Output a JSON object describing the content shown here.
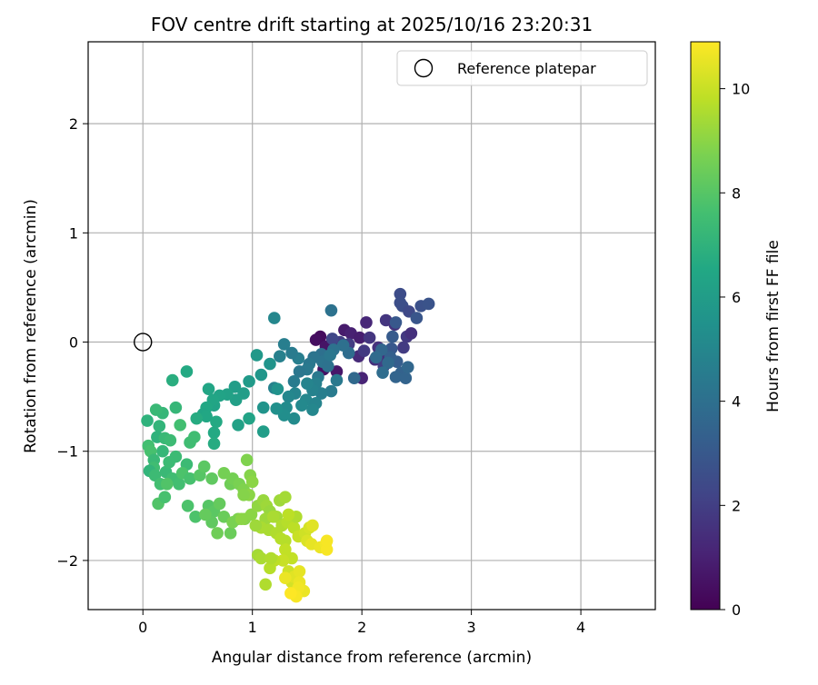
{
  "chart_data": {
    "type": "scatter",
    "title": "FOV centre drift starting at 2025/10/16 23:20:31",
    "xlabel": "Angular distance from reference (arcmin)",
    "ylabel": "Rotation from reference (arcmin)",
    "xlim": [
      -0.5,
      4.68
    ],
    "ylim": [
      -2.45,
      2.75
    ],
    "xticks": [
      "0",
      "1",
      "2",
      "3",
      "4"
    ],
    "yticks": [
      "−2",
      "−1",
      "0",
      "1",
      "2"
    ],
    "grid": true,
    "legend": {
      "position": "top-right",
      "entries": [
        {
          "label": "Reference platepar",
          "marker": "open-circle",
          "x": 0,
          "y": 0
        }
      ]
    },
    "colorbar": {
      "label": "Hours from first FF file",
      "range": [
        0,
        10.9
      ],
      "ticks": [
        "0",
        "2",
        "4",
        "6",
        "8",
        "10"
      ],
      "colormap": "viridis"
    },
    "points": [
      [
        1.62,
        0.05,
        0.3
      ],
      [
        1.58,
        0.02,
        0.4
      ],
      [
        1.67,
        -0.04,
        0.6
      ],
      [
        1.65,
        -0.25,
        0.5
      ],
      [
        1.77,
        -0.27,
        0.7
      ],
      [
        1.84,
        0.11,
        0.8
      ],
      [
        1.9,
        0.08,
        1.0
      ],
      [
        1.98,
        0.04,
        0.9
      ],
      [
        2.04,
        0.18,
        1.2
      ],
      [
        1.97,
        -0.13,
        1.3
      ],
      [
        2.0,
        -0.33,
        1.1
      ],
      [
        2.12,
        -0.16,
        1.5
      ],
      [
        2.19,
        -0.12,
        1.4
      ],
      [
        2.22,
        0.2,
        1.7
      ],
      [
        2.3,
        0.16,
        1.6
      ],
      [
        2.41,
        0.05,
        1.8
      ],
      [
        2.45,
        0.08,
        1.5
      ],
      [
        2.38,
        -0.05,
        1.9
      ],
      [
        2.15,
        -0.05,
        1.6
      ],
      [
        2.2,
        -0.22,
        2.0
      ],
      [
        2.07,
        0.04,
        1.7
      ],
      [
        2.02,
        -0.08,
        1.8
      ],
      [
        1.88,
        -0.02,
        1.9
      ],
      [
        1.8,
        0.0,
        2.0
      ],
      [
        1.73,
        0.03,
        2.3
      ],
      [
        2.35,
        0.44,
        2.5
      ],
      [
        2.37,
        0.33,
        2.6
      ],
      [
        2.35,
        0.36,
        2.6
      ],
      [
        2.43,
        0.28,
        2.4
      ],
      [
        2.54,
        0.33,
        2.7
      ],
      [
        2.61,
        0.35,
        2.8
      ],
      [
        2.5,
        0.22,
        2.9
      ],
      [
        2.31,
        0.18,
        3.0
      ],
      [
        2.28,
        0.05,
        3.1
      ],
      [
        2.27,
        -0.06,
        3.0
      ],
      [
        2.32,
        -0.18,
        3.2
      ],
      [
        2.26,
        -0.14,
        3.3
      ],
      [
        2.36,
        -0.28,
        3.4
      ],
      [
        2.31,
        -0.32,
        3.5
      ],
      [
        2.4,
        -0.33,
        3.5
      ],
      [
        2.42,
        -0.23,
        3.6
      ],
      [
        2.24,
        -0.19,
        3.7
      ],
      [
        2.18,
        -0.07,
        3.6
      ],
      [
        2.13,
        -0.14,
        3.8
      ],
      [
        2.19,
        -0.28,
        3.9
      ],
      [
        1.93,
        -0.33,
        3.7
      ],
      [
        1.88,
        -0.1,
        3.9
      ],
      [
        1.83,
        -0.03,
        4.0
      ],
      [
        1.74,
        -0.07,
        4.1
      ],
      [
        1.63,
        -0.11,
        4.0
      ],
      [
        1.56,
        -0.14,
        4.2
      ],
      [
        1.52,
        -0.2,
        4.3
      ],
      [
        1.5,
        -0.25,
        4.4
      ],
      [
        1.43,
        -0.27,
        4.3
      ],
      [
        1.38,
        -0.36,
        4.5
      ],
      [
        1.42,
        -0.15,
        4.6
      ],
      [
        1.36,
        -0.1,
        4.5
      ],
      [
        1.29,
        -0.02,
        4.6
      ],
      [
        1.25,
        -0.13,
        4.7
      ],
      [
        1.2,
        -0.42,
        4.8
      ],
      [
        1.64,
        -0.18,
        4.2
      ],
      [
        1.69,
        -0.22,
        4.1
      ],
      [
        1.71,
        -0.12,
        4.3
      ],
      [
        1.77,
        -0.35,
        4.4
      ],
      [
        1.72,
        -0.45,
        4.5
      ],
      [
        1.63,
        -0.47,
        4.6
      ],
      [
        1.6,
        -0.32,
        4.4
      ],
      [
        1.58,
        -0.38,
        4.7
      ],
      [
        1.55,
        -0.44,
        4.8
      ],
      [
        1.5,
        -0.38,
        4.9
      ],
      [
        1.49,
        -0.53,
        5.0
      ],
      [
        1.45,
        -0.58,
        5.1
      ],
      [
        1.39,
        -0.47,
        4.9
      ],
      [
        1.33,
        -0.5,
        5.0
      ],
      [
        1.31,
        -0.6,
        5.2
      ],
      [
        1.38,
        -0.7,
        5.2
      ],
      [
        1.29,
        -0.67,
        5.3
      ],
      [
        1.22,
        -0.61,
        5.4
      ],
      [
        1.23,
        -0.43,
        5.5
      ],
      [
        1.1,
        -0.6,
        5.6
      ],
      [
        1.2,
        0.22,
        5.0
      ],
      [
        1.72,
        0.29,
        4.1
      ],
      [
        1.58,
        -0.56,
        4.9
      ],
      [
        1.55,
        -0.62,
        5.0
      ],
      [
        1.16,
        -0.2,
        5.6
      ],
      [
        1.08,
        -0.3,
        5.7
      ],
      [
        1.04,
        -0.12,
        5.8
      ],
      [
        1.1,
        -0.82,
        6.0
      ],
      [
        0.97,
        -0.36,
        5.9
      ],
      [
        0.92,
        -0.47,
        6.0
      ],
      [
        0.85,
        -0.53,
        6.1
      ],
      [
        0.84,
        -0.41,
        6.0
      ],
      [
        0.87,
        -0.76,
        6.2
      ],
      [
        0.97,
        -0.7,
        6.3
      ],
      [
        0.77,
        -0.48,
        6.2
      ],
      [
        0.7,
        -0.49,
        6.3
      ],
      [
        0.65,
        -0.58,
        6.3
      ],
      [
        0.64,
        -0.53,
        6.4
      ],
      [
        0.6,
        -0.43,
        6.4
      ],
      [
        0.58,
        -0.6,
        6.5
      ],
      [
        0.55,
        -0.66,
        6.4
      ],
      [
        0.58,
        -0.68,
        6.5
      ],
      [
        0.65,
        -0.83,
        6.6
      ],
      [
        0.65,
        -0.93,
        6.7
      ],
      [
        0.67,
        -0.73,
        6.6
      ],
      [
        0.49,
        -0.7,
        6.7
      ],
      [
        0.4,
        -0.27,
        6.6
      ],
      [
        0.27,
        -0.35,
        6.8
      ],
      [
        0.3,
        -0.6,
        7.2
      ],
      [
        0.18,
        -0.65,
        7.2
      ],
      [
        0.12,
        -0.62,
        7.3
      ],
      [
        0.04,
        -0.72,
        7.0
      ],
      [
        0.15,
        -0.77,
        7.1
      ],
      [
        0.13,
        -0.87,
        7.0
      ],
      [
        0.2,
        -0.88,
        7.3
      ],
      [
        0.25,
        -0.9,
        7.4
      ],
      [
        0.18,
        -1.0,
        7.2
      ],
      [
        0.3,
        -1.05,
        7.4
      ],
      [
        0.34,
        -0.76,
        7.6
      ],
      [
        0.43,
        -0.92,
        7.5
      ],
      [
        0.4,
        -1.12,
        7.4
      ],
      [
        0.47,
        -0.87,
        7.5
      ],
      [
        0.05,
        -0.95,
        7.6
      ],
      [
        0.07,
        -1.0,
        7.7
      ],
      [
        0.1,
        -1.08,
        7.3
      ],
      [
        0.1,
        -1.15,
        7.5
      ],
      [
        0.06,
        -1.18,
        7.1
      ],
      [
        0.11,
        -1.22,
        7.4
      ],
      [
        0.16,
        -1.3,
        7.6
      ],
      [
        0.21,
        -1.19,
        7.3
      ],
      [
        0.24,
        -1.1,
        7.4
      ],
      [
        0.27,
        -1.25,
        7.5
      ],
      [
        0.33,
        -1.3,
        7.6
      ],
      [
        0.36,
        -1.2,
        7.8
      ],
      [
        0.43,
        -1.25,
        7.7
      ],
      [
        0.41,
        -1.5,
        7.8
      ],
      [
        0.48,
        -1.6,
        7.8
      ],
      [
        0.14,
        -1.48,
        7.9
      ],
      [
        0.2,
        -1.42,
        7.7
      ],
      [
        0.22,
        -1.3,
        7.9
      ],
      [
        0.52,
        -1.22,
        8.0
      ],
      [
        0.56,
        -1.14,
        8.1
      ],
      [
        0.63,
        -1.25,
        8.2
      ],
      [
        0.6,
        -1.5,
        8.0
      ],
      [
        0.65,
        -1.55,
        8.1
      ],
      [
        0.63,
        -1.65,
        8.2
      ],
      [
        0.57,
        -1.58,
        8.3
      ],
      [
        0.7,
        -1.48,
        8.3
      ],
      [
        0.74,
        -1.6,
        8.4
      ],
      [
        0.68,
        -1.75,
        8.5
      ],
      [
        0.8,
        -1.75,
        8.4
      ],
      [
        0.8,
        -1.3,
        8.5
      ],
      [
        0.74,
        -1.2,
        8.6
      ],
      [
        0.82,
        -1.25,
        8.6
      ],
      [
        0.88,
        -1.3,
        8.7
      ],
      [
        0.92,
        -1.35,
        8.8
      ],
      [
        0.95,
        -1.08,
        8.8
      ],
      [
        0.98,
        -1.22,
        8.9
      ],
      [
        1.0,
        -1.28,
        9.0
      ],
      [
        0.97,
        -1.4,
        9.0
      ],
      [
        0.92,
        -1.4,
        8.9
      ],
      [
        0.87,
        -1.62,
        8.8
      ],
      [
        0.82,
        -1.65,
        8.7
      ],
      [
        0.93,
        -1.62,
        8.9
      ],
      [
        0.99,
        -1.58,
        9.0
      ],
      [
        1.05,
        -1.5,
        9.1
      ],
      [
        1.1,
        -1.45,
        9.2
      ],
      [
        1.13,
        -1.5,
        9.3
      ],
      [
        1.16,
        -1.55,
        9.2
      ],
      [
        1.22,
        -1.6,
        9.4
      ],
      [
        1.25,
        -1.45,
        9.3
      ],
      [
        1.3,
        -1.42,
        9.4
      ],
      [
        1.12,
        -1.62,
        9.3
      ],
      [
        1.08,
        -1.7,
        9.5
      ],
      [
        1.15,
        -1.72,
        9.5
      ],
      [
        1.22,
        -1.75,
        9.6
      ],
      [
        1.27,
        -1.68,
        9.6
      ],
      [
        1.32,
        -1.65,
        9.7
      ],
      [
        1.38,
        -1.7,
        9.8
      ],
      [
        1.3,
        -1.82,
        9.7
      ],
      [
        1.3,
        -1.9,
        9.9
      ],
      [
        1.36,
        -1.98,
        9.9
      ],
      [
        1.42,
        -1.78,
        10.0
      ],
      [
        1.48,
        -1.75,
        10.1
      ],
      [
        1.52,
        -1.7,
        10.2
      ],
      [
        1.5,
        -1.82,
        10.3
      ],
      [
        1.55,
        -1.68,
        10.4
      ],
      [
        1.54,
        -1.85,
        10.5
      ],
      [
        1.62,
        -1.88,
        10.6
      ],
      [
        1.67,
        -1.85,
        10.7
      ],
      [
        1.68,
        -1.9,
        10.8
      ],
      [
        1.68,
        -1.82,
        10.8
      ],
      [
        1.28,
        -2.0,
        10.0
      ],
      [
        1.33,
        -2.1,
        10.1
      ],
      [
        1.36,
        -2.2,
        10.2
      ],
      [
        1.38,
        -2.15,
        10.4
      ],
      [
        1.43,
        -2.1,
        10.5
      ],
      [
        1.43,
        -2.2,
        10.6
      ],
      [
        1.47,
        -2.28,
        10.6
      ],
      [
        1.42,
        -2.25,
        10.7
      ],
      [
        1.4,
        -2.33,
        10.8
      ],
      [
        1.35,
        -2.3,
        10.9
      ],
      [
        1.3,
        -2.16,
        10.6
      ],
      [
        1.2,
        -2.0,
        9.8
      ],
      [
        1.16,
        -2.07,
        9.7
      ],
      [
        1.12,
        -2.22,
        9.6
      ],
      [
        1.05,
        -1.95,
        9.4
      ],
      [
        1.08,
        -1.98,
        9.5
      ],
      [
        1.17,
        -1.98,
        9.6
      ],
      [
        1.26,
        -1.8,
        9.7
      ],
      [
        1.4,
        -1.6,
        9.6
      ],
      [
        1.33,
        -1.58,
        9.8
      ],
      [
        1.19,
        -1.6,
        9.5
      ],
      [
        1.03,
        -1.68,
        9.3
      ],
      [
        0.9,
        -1.62,
        9.0
      ]
    ]
  }
}
